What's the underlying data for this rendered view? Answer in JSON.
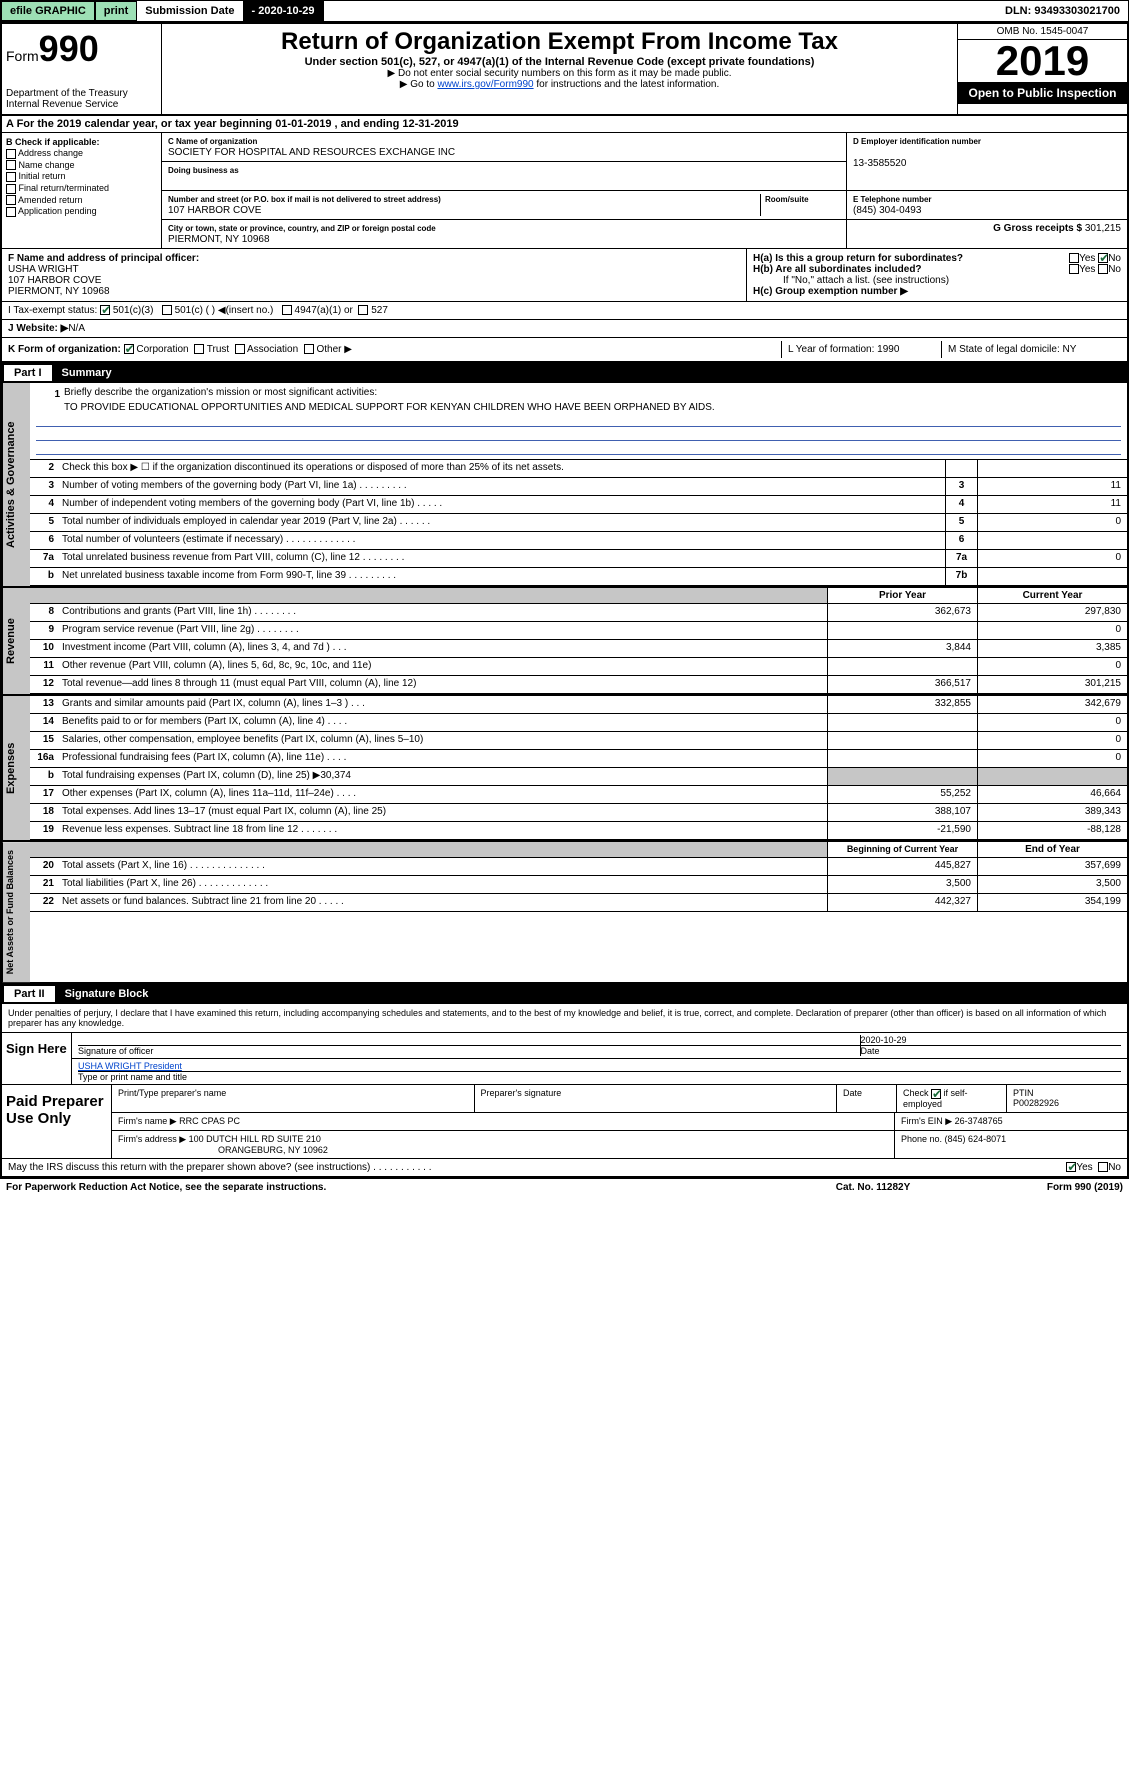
{
  "top_bar": {
    "efile": "efile GRAPHIC",
    "print": "print",
    "sub_label": "Submission Date ",
    "sub_date": "- 2020-10-29",
    "dln": "DLN: 93493303021700"
  },
  "header": {
    "form_label": "Form",
    "form_num": "990",
    "dept": "Department of the Treasury\nInternal Revenue Service",
    "title": "Return of Organization Exempt From Income Tax",
    "subtitle": "Under section 501(c), 527, or 4947(a)(1) of the Internal Revenue Code (except private foundations)",
    "note1": "▶ Do not enter social security numbers on this form as it may be made public.",
    "note2_pre": "▶ Go to ",
    "note2_link": "www.irs.gov/Form990",
    "note2_post": " for instructions and the latest information.",
    "omb": "OMB No. 1545-0047",
    "year": "2019",
    "open": "Open to Public Inspection"
  },
  "row_a": "A For the 2019 calendar year, or tax year beginning 01-01-2019    , and ending 12-31-2019",
  "box_b": {
    "label": "B Check if applicable:",
    "opts": [
      "Address change",
      "Name change",
      "Initial return",
      "Final return/terminated",
      "Amended return",
      "Application pending"
    ]
  },
  "box_c": {
    "name_lbl": "C Name of organization",
    "name": "SOCIETY FOR HOSPITAL AND RESOURCES EXCHANGE INC",
    "dba_lbl": "Doing business as",
    "dba": "",
    "addr_lbl": "Number and street (or P.O. box if mail is not delivered to street address)",
    "room_lbl": "Room/suite",
    "addr": "107 HARBOR COVE",
    "city_lbl": "City or town, state or province, country, and ZIP or foreign postal code",
    "city": "PIERMONT, NY  10968"
  },
  "box_d": {
    "lbl": "D Employer identification number",
    "val": "13-3585520"
  },
  "box_e": {
    "lbl": "E Telephone number",
    "val": "(845) 304-0493"
  },
  "box_g": {
    "lbl": "G Gross receipts $ ",
    "val": "301,215"
  },
  "box_f": {
    "lbl": "F  Name and address of principal officer:",
    "name": "USHA WRIGHT",
    "addr1": "107 HARBOR COVE",
    "addr2": "PIERMONT, NY  10968"
  },
  "box_h": {
    "ha": "H(a)  Is this a group return for subordinates?",
    "hb": "H(b)  Are all subordinates included?",
    "hb_note": "If \"No,\" attach a list. (see instructions)",
    "hc": "H(c)  Group exemption number ▶"
  },
  "row_i": {
    "label": "I      Tax-exempt status:",
    "opts": [
      "501(c)(3)",
      "501(c) (  ) ◀(insert no.)",
      "4947(a)(1) or",
      "527"
    ]
  },
  "row_j": {
    "label": "J     Website: ▶",
    "val": " N/A"
  },
  "row_k": {
    "label": "K Form of organization:",
    "opts": [
      "Corporation",
      "Trust",
      "Association",
      "Other ▶"
    ],
    "l": "L Year of formation: 1990",
    "m": "M State of legal domicile: NY"
  },
  "part1": {
    "num": "Part I",
    "title": "Summary"
  },
  "mission": {
    "num": "1",
    "label": "Briefly describe the organization's mission or most significant activities:",
    "text": "TO PROVIDE EDUCATIONAL OPPORTUNITIES AND MEDICAL SUPPORT FOR KENYAN CHILDREN WHO HAVE BEEN ORPHANED BY AIDS."
  },
  "gov_lines": [
    {
      "n": "2",
      "t": "Check this box ▶ ☐  if the organization discontinued its operations or disposed of more than 25% of its net assets.",
      "box": "",
      "v": ""
    },
    {
      "n": "3",
      "t": "Number of voting members of the governing body (Part VI, line 1a)   .    .    .    .    .    .    .    .    .",
      "box": "3",
      "v": "11"
    },
    {
      "n": "4",
      "t": "Number of independent voting members of the governing body (Part VI, line 1b)   .    .    .    .    .",
      "box": "4",
      "v": "11"
    },
    {
      "n": "5",
      "t": "Total number of individuals employed in calendar year 2019 (Part V, line 2a)   .    .    .    .    .    .",
      "box": "5",
      "v": "0"
    },
    {
      "n": "6",
      "t": "Total number of volunteers (estimate if necessary)   .    .    .    .    .    .    .    .    .    .    .    .    .",
      "box": "6",
      "v": ""
    },
    {
      "n": "7a",
      "t": "Total unrelated business revenue from Part VIII, column (C), line 12   .    .    .    .    .    .    .    .",
      "box": "7a",
      "v": "0"
    },
    {
      "n": "b",
      "t": "Net unrelated business taxable income from Form 990-T, line 39   .    .    .    .    .    .    .    .    .",
      "box": "7b",
      "v": ""
    }
  ],
  "col_headers": {
    "prior": "Prior Year",
    "current": "Current Year"
  },
  "rev_lines": [
    {
      "n": "8",
      "t": "Contributions and grants (Part VIII, line 1h)   .    .    .    .    .    .    .    .",
      "p": "362,673",
      "c": "297,830"
    },
    {
      "n": "9",
      "t": "Program service revenue (Part VIII, line 2g)   .    .    .    .    .    .    .    .",
      "p": "",
      "c": "0"
    },
    {
      "n": "10",
      "t": "Investment income (Part VIII, column (A), lines 3, 4, and 7d )   .    .    .",
      "p": "3,844",
      "c": "3,385"
    },
    {
      "n": "11",
      "t": "Other revenue (Part VIII, column (A), lines 5, 6d, 8c, 9c, 10c, and 11e)",
      "p": "",
      "c": "0"
    },
    {
      "n": "12",
      "t": "Total revenue—add lines 8 through 11 (must equal Part VIII, column (A), line 12)",
      "p": "366,517",
      "c": "301,215"
    }
  ],
  "exp_lines": [
    {
      "n": "13",
      "t": "Grants and similar amounts paid (Part IX, column (A), lines 1–3 )   .    .    .",
      "p": "332,855",
      "c": "342,679"
    },
    {
      "n": "14",
      "t": "Benefits paid to or for members (Part IX, column (A), line 4)   .    .    .    .",
      "p": "",
      "c": "0"
    },
    {
      "n": "15",
      "t": "Salaries, other compensation, employee benefits (Part IX, column (A), lines 5–10)",
      "p": "",
      "c": "0"
    },
    {
      "n": "16a",
      "t": "Professional fundraising fees (Part IX, column (A), line 11e)   .    .    .    .",
      "p": "",
      "c": "0"
    },
    {
      "n": "b",
      "t": "Total fundraising expenses (Part IX, column (D), line 25) ▶30,374",
      "p": "gray",
      "c": "gray"
    },
    {
      "n": "17",
      "t": "Other expenses (Part IX, column (A), lines 11a–11d, 11f–24e)   .    .    .    .",
      "p": "55,252",
      "c": "46,664"
    },
    {
      "n": "18",
      "t": "Total expenses. Add lines 13–17 (must equal Part IX, column (A), line 25)",
      "p": "388,107",
      "c": "389,343"
    },
    {
      "n": "19",
      "t": "Revenue less expenses. Subtract line 18 from line 12   .    .    .    .    .    .    .",
      "p": "-21,590",
      "c": "-88,128"
    }
  ],
  "net_headers": {
    "begin": "Beginning of Current Year",
    "end": "End of Year"
  },
  "net_lines": [
    {
      "n": "20",
      "t": "Total assets (Part X, line 16)   .    .    .    .    .    .    .    .    .    .    .    .    .    .",
      "p": "445,827",
      "c": "357,699"
    },
    {
      "n": "21",
      "t": "Total liabilities (Part X, line 26)   .    .    .    .    .    .    .    .    .    .    .    .    .",
      "p": "3,500",
      "c": "3,500"
    },
    {
      "n": "22",
      "t": "Net assets or fund balances. Subtract line 21 from line 20   .    .    .    .    .",
      "p": "442,327",
      "c": "354,199"
    }
  ],
  "side_labels": {
    "gov": "Activities & Governance",
    "rev": "Revenue",
    "exp": "Expenses",
    "net": "Net Assets or Fund Balances"
  },
  "part2": {
    "num": "Part II",
    "title": "Signature Block"
  },
  "perjury": "Under penalties of perjury, I declare that I have examined this return, including accompanying schedules and statements, and to the best of my knowledge and belief, it is true, correct, and complete. Declaration of preparer (other than officer) is based on all information of which preparer has any knowledge.",
  "sign": {
    "label": "Sign Here",
    "sig_date": "2020-10-29",
    "sig_lbl": "Signature of officer",
    "date_lbl": "Date",
    "name": "USHA WRIGHT President",
    "name_lbl": "Type or print name and title"
  },
  "paid": {
    "label": "Paid Preparer Use Only",
    "h1": "Print/Type preparer's name",
    "h2": "Preparer's signature",
    "h3": "Date",
    "h4_pre": "Check",
    "h4_post": "if self-employed",
    "h5": "PTIN",
    "ptin": "P00282926",
    "firm_lbl": "Firm's name     ▶ ",
    "firm": "RRC CPAS PC",
    "ein_lbl": "Firm's EIN ▶ ",
    "ein": "26-3748765",
    "addr_lbl": "Firm's address ▶ ",
    "addr1": "100 DUTCH HILL RD SUITE 210",
    "addr2": "ORANGEBURG, NY  10962",
    "phone_lbl": "Phone no. ",
    "phone": "(845) 624-8071"
  },
  "discuss": "May the IRS discuss this return with the preparer shown above? (see instructions)    .    .    .    .    .    .    .    .    .    .    .",
  "footer": {
    "pra": "For Paperwork Reduction Act Notice, see the separate instructions.",
    "cat": "Cat. No. 11282Y",
    "form": "Form 990 (2019)"
  }
}
